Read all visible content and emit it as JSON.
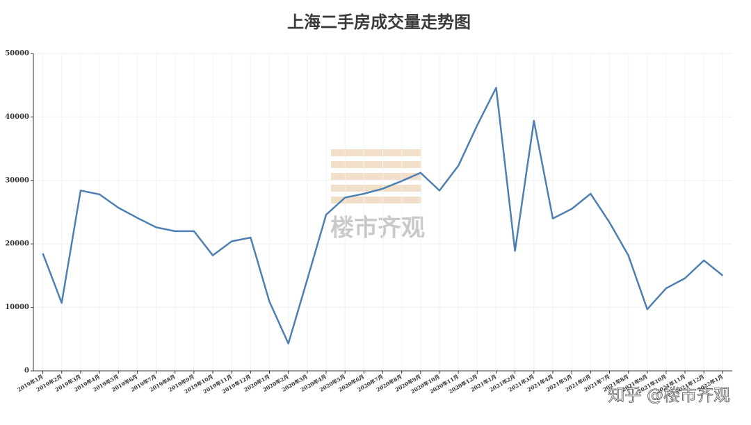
{
  "chart_data": {
    "type": "line",
    "title": "上海二手房成交量走势图",
    "categories": [
      "2019年1月",
      "2019年2月",
      "2019年3月",
      "2019年4月",
      "2019年5月",
      "2019年6月",
      "2019年7月",
      "2019年8月",
      "2019年9月",
      "2019年10月",
      "2019年11月",
      "2019年12月",
      "2020年1月",
      "2020年2月",
      "2020年3月",
      "2020年4月",
      "2020年5月",
      "2020年6月",
      "2020年7月",
      "2020年8月",
      "2020年9月",
      "2020年10月",
      "2020年11月",
      "2020年12月",
      "2021年1月",
      "2021年2月",
      "2021年3月",
      "2021年4月",
      "2021年5月",
      "2021年6月",
      "2021年7月",
      "2021年8月",
      "2021年9月",
      "2021年10月",
      "2021年11月",
      "2021年12月",
      "2022年1月"
    ],
    "values": [
      18500,
      10700,
      28400,
      27800,
      25700,
      24100,
      22600,
      22000,
      22000,
      18200,
      20400,
      21000,
      10900,
      4300,
      14400,
      24600,
      27300,
      27900,
      28700,
      29900,
      31200,
      28400,
      32300,
      38700,
      44600,
      18900,
      39400,
      24000,
      25500,
      27900,
      23400,
      18200,
      9700,
      13000,
      14600,
      17400,
      15000
    ],
    "color": "#4e7fb3",
    "ylim": [
      0,
      50000
    ],
    "yticks": [
      0,
      10000,
      20000,
      30000,
      40000,
      50000
    ],
    "grid": true,
    "watermark": "楼市齐观",
    "credit": "知乎 @楼市齐观"
  }
}
